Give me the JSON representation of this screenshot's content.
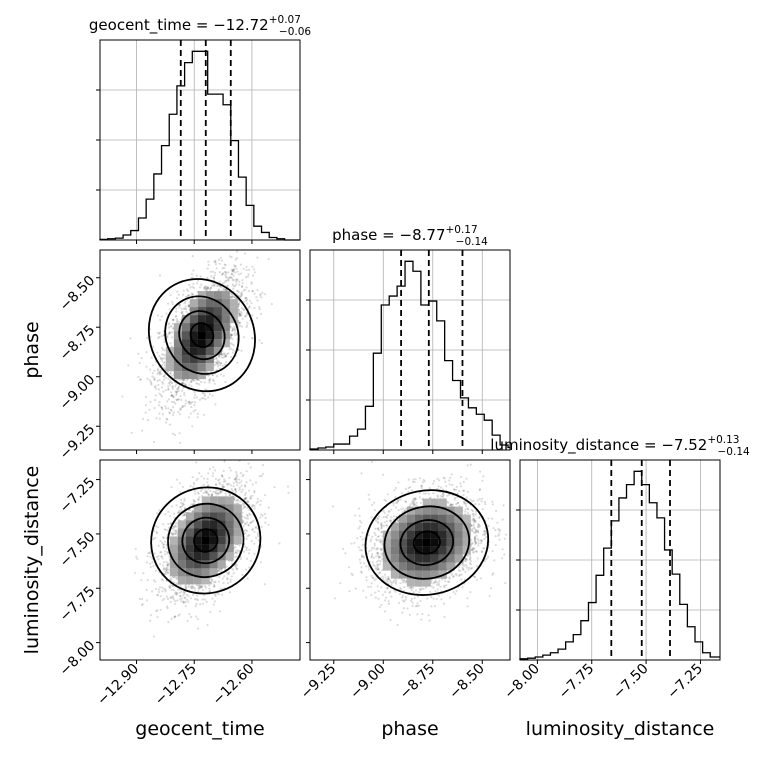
{
  "chart_data": {
    "type": "corner",
    "grid": true,
    "parameters": [
      {
        "name": "geocent_time",
        "median": -12.72,
        "plus": "+0.07",
        "minus": "−0.06",
        "title_prefix": "geocent_time = ",
        "title_value": "−12.72",
        "xlim": [
          -12.995,
          -12.475
        ],
        "ticks": [
          -12.9,
          -12.75,
          -12.6
        ],
        "tick_labels": [
          "−12.90",
          "−12.75",
          "−12.60"
        ],
        "quantiles": [
          -12.785,
          -12.72,
          -12.655
        ]
      },
      {
        "name": "phase",
        "median": -8.77,
        "plus": "+0.17",
        "minus": "−0.14",
        "title_prefix": "phase = ",
        "title_value": "−8.77",
        "xlim": [
          -9.37,
          -8.36
        ],
        "ticks": [
          -9.25,
          -9.0,
          -8.75,
          -8.5
        ],
        "tick_labels": [
          "−9.25",
          "−9.00",
          "−8.75",
          "−8.50"
        ],
        "quantiles": [
          -8.91,
          -8.77,
          -8.6
        ]
      },
      {
        "name": "luminosity_distance",
        "median": -7.52,
        "plus": "+0.13",
        "minus": "−0.14",
        "title_prefix": "luminosity_distance = ",
        "title_value": "−7.52",
        "xlim": [
          -8.08,
          -7.16
        ],
        "ticks": [
          -8.0,
          -7.75,
          -7.5,
          -7.25
        ],
        "tick_labels": [
          "−8.00",
          "−7.75",
          "−7.50",
          "−7.25"
        ],
        "quantiles": [
          -7.66,
          -7.52,
          -7.39
        ]
      }
    ],
    "histograms": [
      {
        "parameter": "geocent_time",
        "bins": [
          -12.995,
          -12.975,
          -12.955,
          -12.935,
          -12.915,
          -12.895,
          -12.875,
          -12.855,
          -12.835,
          -12.815,
          -12.795,
          -12.775,
          -12.755,
          -12.735,
          -12.715,
          -12.695,
          -12.675,
          -12.655,
          -12.635,
          -12.615,
          -12.595,
          -12.575,
          -12.555,
          -12.535,
          -12.515,
          -12.495,
          -12.475
        ],
        "counts": [
          1,
          2,
          3,
          8,
          15,
          35,
          65,
          105,
          150,
          200,
          245,
          282,
          300,
          300,
          232,
          232,
          215,
          158,
          100,
          55,
          22,
          12,
          4,
          2,
          0,
          0
        ]
      },
      {
        "parameter": "phase",
        "bins": [
          -9.37,
          -9.33,
          -9.29,
          -9.25,
          -9.21,
          -9.17,
          -9.13,
          -9.09,
          -9.05,
          -9.01,
          -8.97,
          -8.93,
          -8.89,
          -8.85,
          -8.81,
          -8.77,
          -8.73,
          -8.69,
          -8.65,
          -8.61,
          -8.57,
          -8.53,
          -8.49,
          -8.45,
          -8.41,
          -8.37,
          -8.36
        ],
        "counts": [
          2,
          4,
          6,
          12,
          12,
          28,
          42,
          88,
          195,
          292,
          310,
          330,
          380,
          360,
          292,
          300,
          260,
          180,
          140,
          105,
          85,
          72,
          60,
          30,
          10,
          5
        ]
      },
      {
        "parameter": "luminosity_distance",
        "bins": [
          -8.08,
          -8.045,
          -8.01,
          -7.975,
          -7.94,
          -7.905,
          -7.87,
          -7.835,
          -7.8,
          -7.765,
          -7.73,
          -7.695,
          -7.66,
          -7.625,
          -7.59,
          -7.555,
          -7.52,
          -7.485,
          -7.45,
          -7.415,
          -7.38,
          -7.345,
          -7.31,
          -7.275,
          -7.24,
          -7.205,
          -7.16
        ],
        "counts": [
          2,
          3,
          5,
          8,
          12,
          18,
          30,
          42,
          65,
          95,
          140,
          185,
          230,
          268,
          290,
          312,
          290,
          260,
          235,
          182,
          142,
          92,
          55,
          30,
          12,
          5
        ]
      }
    ],
    "pairs": [
      {
        "x": "geocent_time",
        "y": "phase",
        "center": [
          -12.73,
          -8.79
        ],
        "spread": [
          0.055,
          0.16
        ],
        "corr": 0.55
      },
      {
        "x": "geocent_time",
        "y": "luminosity_distance",
        "center": [
          -12.72,
          -7.53
        ],
        "spread": [
          0.06,
          0.13
        ],
        "corr": 0.45
      },
      {
        "x": "phase",
        "y": "luminosity_distance",
        "center": [
          -8.78,
          -7.54
        ],
        "spread": [
          0.14,
          0.12
        ],
        "corr": 0.2
      }
    ],
    "axis_labels": {
      "geocent_time": "geocent_time",
      "phase": "phase",
      "luminosity_distance": "luminosity_distance"
    }
  }
}
